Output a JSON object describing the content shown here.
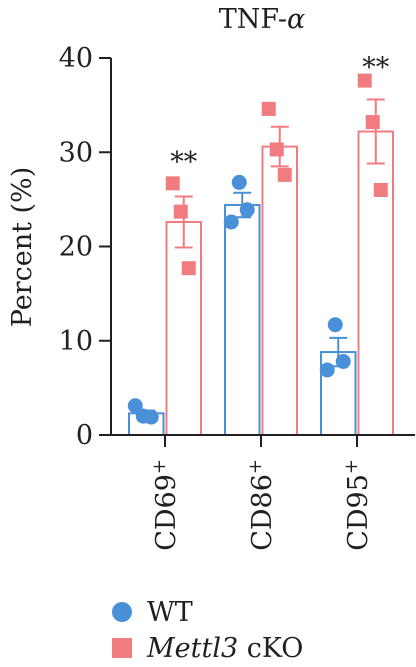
{
  "chart_data": {
    "type": "bar",
    "title": "TNF-α",
    "ylabel": "Percent (%)",
    "ylim": [
      0,
      40
    ],
    "yticks": [
      0,
      10,
      20,
      30,
      40
    ],
    "categories": [
      {
        "base": "CD69",
        "sup": "+"
      },
      {
        "base": "CD86",
        "sup": "+"
      },
      {
        "base": "CD95",
        "sup": "+"
      }
    ],
    "series": [
      {
        "name": "WT",
        "color": "#4a90d9",
        "marker": "circle",
        "values": [
          2.3,
          24.4,
          8.8
        ],
        "errors": [
          0.3,
          1.3,
          1.5
        ],
        "points": [
          [
            3.1,
            2.0,
            1.9
          ],
          [
            22.6,
            26.8,
            23.9
          ],
          [
            6.9,
            11.7,
            7.8
          ]
        ]
      },
      {
        "name": "Mettl3 cKO",
        "name_italic": "Mettl3",
        "name_rest": " cKO",
        "color": "#f07c80",
        "marker": "square",
        "values": [
          22.6,
          30.6,
          32.2
        ],
        "errors": [
          2.7,
          2.1,
          3.4
        ],
        "points": [
          [
            26.7,
            23.7,
            17.7
          ],
          [
            34.6,
            30.3,
            27.6
          ],
          [
            37.6,
            33.2,
            26.0
          ]
        ]
      }
    ],
    "annotations": [
      {
        "category": 0,
        "text": "**",
        "y": 29.5
      },
      {
        "category": 2,
        "text": "**",
        "y": 39.5
      }
    ],
    "legend_position": "bottom-left"
  }
}
